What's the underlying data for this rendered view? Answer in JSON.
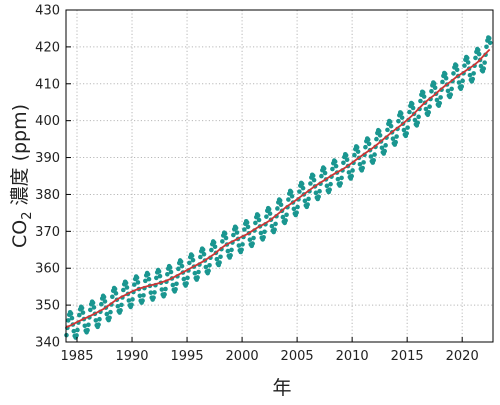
{
  "chart_data": {
    "type": "line",
    "xlabel": "年",
    "ylabel": {
      "base": "CO",
      "subscript": "2",
      "rest": " 濃度 (ppm)"
    },
    "xlim": [
      1984,
      2022.8
    ],
    "ylim": [
      340,
      430
    ],
    "xticks": [
      1985,
      1990,
      1995,
      2000,
      2005,
      2010,
      2015,
      2020
    ],
    "yticks": [
      340,
      350,
      360,
      370,
      380,
      390,
      400,
      410,
      420,
      430
    ],
    "grid": true,
    "series": [
      {
        "style": "markers",
        "color": "#1a9690",
        "seasonal_amplitude_ppm": 3.8,
        "x": [
          1984.0,
          1984.5,
          1985.0,
          1985.5,
          1986.0,
          1986.5,
          1987.0,
          1987.5,
          1988.0,
          1988.5,
          1989.0,
          1989.5,
          1990.0,
          1990.5,
          1991.0,
          1991.5,
          1992.0,
          1992.5,
          1993.0,
          1993.5,
          1994.0,
          1994.5,
          1995.0,
          1995.5,
          1996.0,
          1996.5,
          1997.0,
          1997.5,
          1998.0,
          1998.5,
          1999.0,
          1999.5,
          2000.0,
          2000.5,
          2001.0,
          2001.5,
          2002.0,
          2002.5,
          2003.0,
          2003.5,
          2004.0,
          2004.5,
          2005.0,
          2005.5,
          2006.0,
          2006.5,
          2007.0,
          2007.5,
          2008.0,
          2008.5,
          2009.0,
          2009.5,
          2010.0,
          2010.5,
          2011.0,
          2011.5,
          2012.0,
          2012.5,
          2013.0,
          2013.5,
          2014.0,
          2014.5,
          2015.0,
          2015.5,
          2016.0,
          2016.5,
          2017.0,
          2017.5,
          2018.0,
          2018.5,
          2019.0,
          2019.5,
          2020.0,
          2020.5,
          2021.0,
          2021.5,
          2022.0,
          2022.5
        ],
        "trend": [
          344.0,
          344.6,
          345.4,
          346.1,
          346.8,
          347.5,
          348.3,
          349.1,
          350.2,
          351.3,
          352.2,
          352.9,
          353.7,
          354.3,
          354.8,
          355.2,
          355.6,
          356.0,
          356.5,
          357.1,
          357.9,
          358.7,
          359.5,
          360.3,
          361.1,
          361.9,
          362.9,
          363.9,
          365.2,
          366.3,
          367.1,
          367.8,
          368.6,
          369.3,
          370.3,
          371.2,
          372.0,
          372.9,
          374.1,
          375.3,
          376.6,
          377.6,
          378.7,
          379.8,
          380.9,
          382.0,
          383.0,
          383.9,
          384.9,
          385.8,
          386.6,
          387.5,
          388.6,
          389.7,
          390.8,
          391.8,
          392.9,
          394.1,
          395.4,
          396.6,
          397.8,
          398.9,
          400.2,
          401.5,
          403.1,
          404.6,
          405.9,
          407.0,
          408.4,
          409.6,
          410.7,
          411.9,
          412.9,
          413.9,
          414.9,
          416.1,
          417.8,
          419.3
        ]
      },
      {
        "style": "line",
        "color": "#d03434",
        "x": [
          1984.0,
          1984.5,
          1985.0,
          1985.5,
          1986.0,
          1986.5,
          1987.0,
          1987.5,
          1988.0,
          1988.5,
          1989.0,
          1989.5,
          1990.0,
          1990.5,
          1991.0,
          1991.5,
          1992.0,
          1992.5,
          1993.0,
          1993.5,
          1994.0,
          1994.5,
          1995.0,
          1995.5,
          1996.0,
          1996.5,
          1997.0,
          1997.5,
          1998.0,
          1998.5,
          1999.0,
          1999.5,
          2000.0,
          2000.5,
          2001.0,
          2001.5,
          2002.0,
          2002.5,
          2003.0,
          2003.5,
          2004.0,
          2004.5,
          2005.0,
          2005.5,
          2006.0,
          2006.5,
          2007.0,
          2007.5,
          2008.0,
          2008.5,
          2009.0,
          2009.5,
          2010.0,
          2010.5,
          2011.0,
          2011.5,
          2012.0,
          2012.5,
          2013.0,
          2013.5,
          2014.0,
          2014.5,
          2015.0,
          2015.5,
          2016.0,
          2016.5,
          2017.0,
          2017.5,
          2018.0,
          2018.5,
          2019.0,
          2019.5,
          2020.0,
          2020.5,
          2021.0,
          2021.5,
          2022.0,
          2022.5
        ],
        "y": [
          344.0,
          344.6,
          345.4,
          346.1,
          346.8,
          347.5,
          348.3,
          349.1,
          350.2,
          351.3,
          352.2,
          352.9,
          353.7,
          354.3,
          354.8,
          355.2,
          355.6,
          356.0,
          356.5,
          357.1,
          357.9,
          358.7,
          359.5,
          360.3,
          361.1,
          361.9,
          362.9,
          363.9,
          365.2,
          366.3,
          367.1,
          367.8,
          368.6,
          369.3,
          370.3,
          371.2,
          372.0,
          372.9,
          374.1,
          375.3,
          376.6,
          377.6,
          378.7,
          379.8,
          380.9,
          382.0,
          383.0,
          383.9,
          384.9,
          385.8,
          386.6,
          387.5,
          388.6,
          389.7,
          390.8,
          391.8,
          392.9,
          394.1,
          395.4,
          396.6,
          397.8,
          398.9,
          400.2,
          401.5,
          403.1,
          404.6,
          405.9,
          407.0,
          408.4,
          409.6,
          410.7,
          411.9,
          412.9,
          413.9,
          414.9,
          416.1,
          417.8,
          419.3
        ]
      }
    ]
  }
}
